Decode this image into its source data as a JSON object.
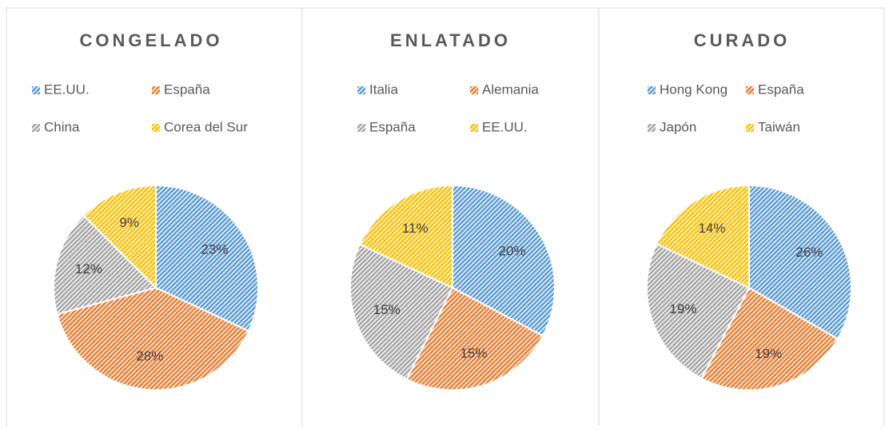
{
  "chart_data": [
    {
      "type": "pie",
      "title": "CONGELADO",
      "categories": [
        "EE.UU.",
        "España",
        "China",
        "Corea del Sur"
      ],
      "values": [
        23,
        28,
        12,
        9
      ],
      "value_labels": [
        "23%",
        "28%",
        "12%",
        "9%"
      ],
      "colors": [
        "#5b9bd5",
        "#ed7d31",
        "#a5a5a5",
        "#ffc000"
      ]
    },
    {
      "type": "pie",
      "title": "ENLATADO",
      "categories": [
        "Italia",
        "Alemania",
        "España",
        "EE.UU."
      ],
      "values": [
        20,
        15,
        15,
        11
      ],
      "value_labels": [
        "20%",
        "15%",
        "15%",
        "11%"
      ],
      "colors": [
        "#5b9bd5",
        "#ed7d31",
        "#a5a5a5",
        "#ffc000"
      ]
    },
    {
      "type": "pie",
      "title": "CURADO",
      "categories": [
        "Hong Kong",
        "España",
        "Japón",
        "Taiwán"
      ],
      "values": [
        26,
        19,
        19,
        14
      ],
      "value_labels": [
        "26%",
        "19%",
        "19%",
        "14%"
      ],
      "colors": [
        "#5b9bd5",
        "#ed7d31",
        "#a5a5a5",
        "#ffc000"
      ]
    }
  ]
}
